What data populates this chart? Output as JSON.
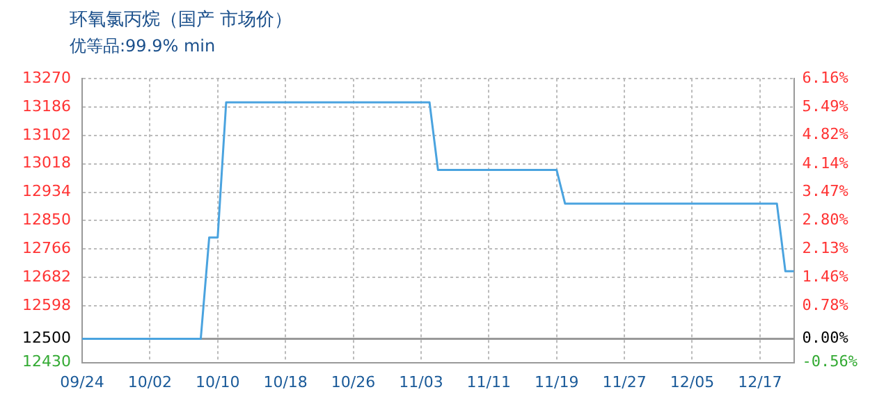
{
  "chart_data": {
    "type": "line",
    "title": "环氧氯丙烷（国产 市场价）",
    "subtitle": "优等品:99.9% min",
    "categories": [
      "09/24",
      null,
      null,
      null,
      null,
      null,
      null,
      null,
      "10/02",
      null,
      null,
      null,
      null,
      null,
      null,
      null,
      "10/10",
      null,
      null,
      null,
      null,
      null,
      null,
      null,
      "10/18",
      null,
      null,
      null,
      null,
      null,
      null,
      null,
      "10/26",
      null,
      null,
      null,
      null,
      null,
      null,
      null,
      "11/03",
      null,
      null,
      null,
      null,
      null,
      null,
      null,
      "11/11",
      null,
      null,
      null,
      null,
      null,
      null,
      null,
      "11/19",
      null,
      null,
      null,
      null,
      null,
      null,
      null,
      "11/27",
      null,
      null,
      null,
      null,
      null,
      null,
      null,
      "12/05",
      null,
      null,
      null,
      null,
      null,
      null,
      null,
      "12/17",
      null,
      null,
      null,
      null
    ],
    "series": [
      {
        "color": "#4aa3df",
        "values": [
          12500,
          12500,
          12500,
          12500,
          12500,
          12500,
          12500,
          12500,
          12500,
          12500,
          12500,
          12500,
          12500,
          12500,
          12500,
          12800,
          12800,
          13200,
          13200,
          13200,
          13200,
          13200,
          13200,
          13200,
          13200,
          13200,
          13200,
          13200,
          13200,
          13200,
          13200,
          13200,
          13200,
          13200,
          13200,
          13200,
          13200,
          13200,
          13200,
          13200,
          13200,
          13200,
          13000,
          13000,
          13000,
          13000,
          13000,
          13000,
          13000,
          13000,
          13000,
          13000,
          13000,
          13000,
          13000,
          13000,
          13000,
          12900,
          12900,
          12900,
          12900,
          12900,
          12900,
          12900,
          12900,
          12900,
          12900,
          12900,
          12900,
          12900,
          12900,
          12900,
          12900,
          12900,
          12900,
          12900,
          12900,
          12900,
          12900,
          12900,
          12900,
          12900,
          12900,
          12700,
          12700
        ]
      }
    ],
    "ylim": [
      12430,
      13270
    ],
    "yticks": [
      12430,
      12500,
      12598,
      12682,
      12766,
      12850,
      12934,
      13018,
      13102,
      13186,
      13270
    ],
    "y2lim": [
      -0.56,
      6.16
    ],
    "y2ticks": [
      {
        "value": -0.56,
        "label": "-0.56%"
      },
      {
        "value": 0,
        "label": "0.00%"
      },
      {
        "value": 0.78,
        "label": "0.78%"
      },
      {
        "value": 1.46,
        "label": "1.46%"
      },
      {
        "value": 2.13,
        "label": "2.13%"
      },
      {
        "value": 2.8,
        "label": "2.80%"
      },
      {
        "value": 3.47,
        "label": "3.47%"
      },
      {
        "value": 4.14,
        "label": "4.14%"
      },
      {
        "value": 4.82,
        "label": "4.82%"
      },
      {
        "value": 5.49,
        "label": "5.49%"
      },
      {
        "value": 6.16,
        "label": "6.16%"
      }
    ],
    "ref_lines": [
      {
        "axis": "y",
        "value": 12500,
        "color": "#999999"
      }
    ],
    "grid": true,
    "legend": false,
    "marker": "none",
    "line_style": "solid"
  }
}
